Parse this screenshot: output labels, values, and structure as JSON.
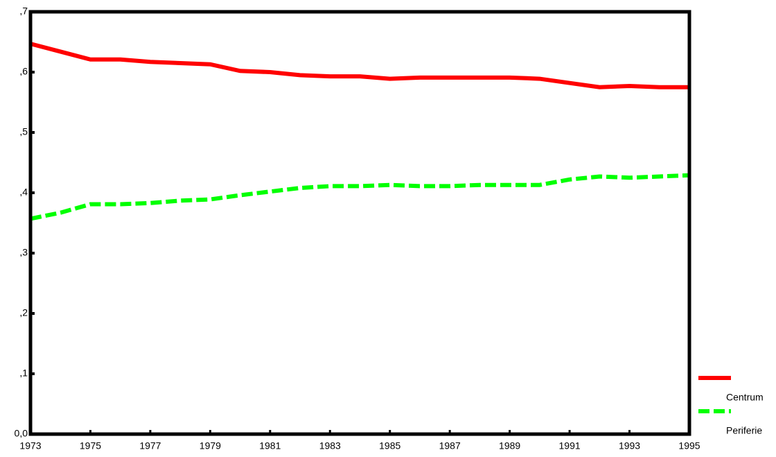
{
  "chart_data": {
    "type": "line",
    "x": [
      1973,
      1974,
      1975,
      1976,
      1977,
      1978,
      1979,
      1980,
      1981,
      1982,
      1983,
      1984,
      1985,
      1986,
      1987,
      1988,
      1989,
      1990,
      1991,
      1992,
      1993,
      1994,
      1995
    ],
    "series": [
      {
        "name": "Centrum",
        "color": "#ff0000",
        "style": "solid",
        "values": [
          0.647,
          0.634,
          0.621,
          0.621,
          0.617,
          0.615,
          0.613,
          0.602,
          0.6,
          0.595,
          0.593,
          0.593,
          0.589,
          0.591,
          0.591,
          0.591,
          0.591,
          0.589,
          0.582,
          0.575,
          0.577,
          0.575,
          0.575
        ]
      },
      {
        "name": "Periferie",
        "color": "#00ff00",
        "style": "dashed",
        "values": [
          0.357,
          0.367,
          0.381,
          0.381,
          0.383,
          0.387,
          0.389,
          0.396,
          0.402,
          0.408,
          0.411,
          0.411,
          0.413,
          0.411,
          0.411,
          0.413,
          0.413,
          0.413,
          0.422,
          0.427,
          0.425,
          0.427,
          0.429
        ]
      }
    ],
    "xlim": [
      1973,
      1995
    ],
    "xticks": [
      1973,
      1975,
      1977,
      1979,
      1981,
      1983,
      1985,
      1987,
      1989,
      1991,
      1993,
      1995
    ],
    "ylim": [
      0,
      0.7
    ],
    "yticks": [
      {
        "value": 0,
        "label": "0,0"
      },
      {
        "value": 0.1,
        "label": ",1"
      },
      {
        "value": 0.2,
        "label": ",2"
      },
      {
        "value": 0.3,
        "label": ",3"
      },
      {
        "value": 0.4,
        "label": ",4"
      },
      {
        "value": 0.5,
        "label": ",5"
      },
      {
        "value": 0.6,
        "label": ",6"
      },
      {
        "value": 0.7,
        "label": ",7"
      }
    ],
    "legend": "right"
  }
}
